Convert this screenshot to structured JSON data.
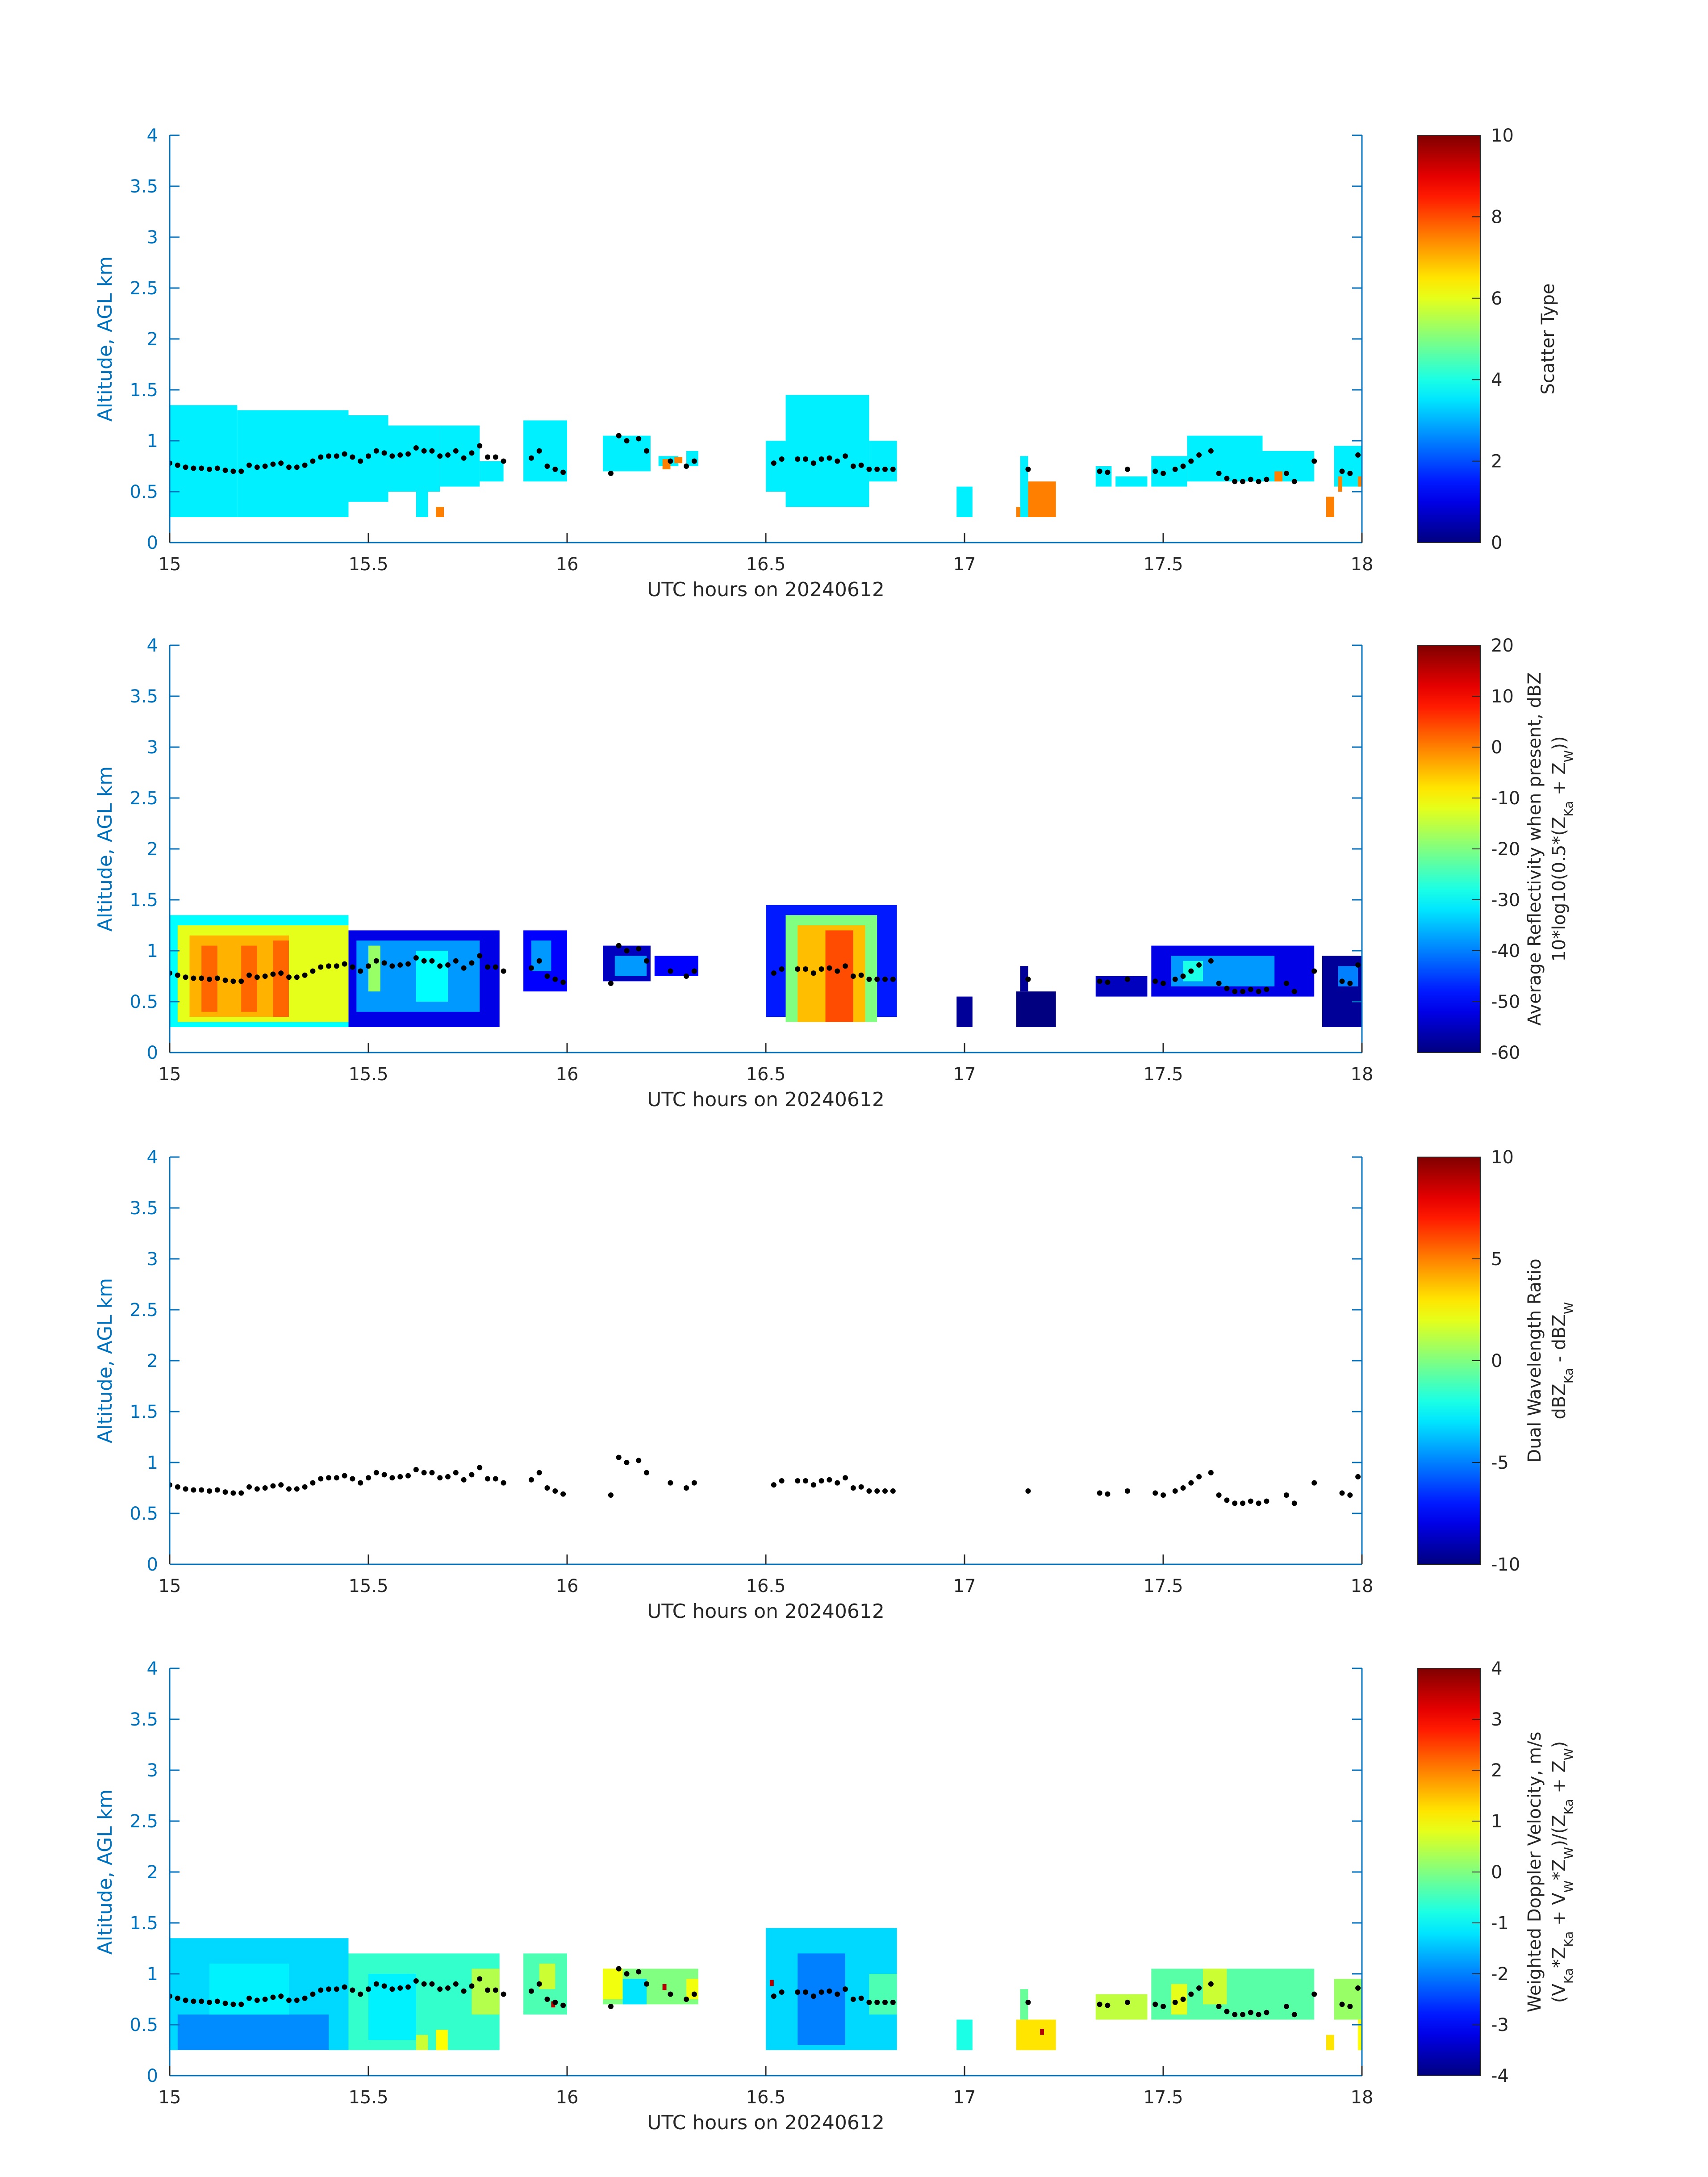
{
  "colors": {
    "axis": "#0072BD",
    "text": "#262626",
    "marker": "#000000",
    "jet": [
      "#00007f",
      "#0000ff",
      "#007fff",
      "#00ffff",
      "#7fff7f",
      "#ffff00",
      "#ff7f00",
      "#ff0000",
      "#7f0000"
    ]
  },
  "chart_data": [
    {
      "type": "heatmap",
      "id": "scatter-type",
      "title": "",
      "xlabel": "UTC hours on 20240612",
      "ylabel": "Altitude, AGL km",
      "xlim": [
        15,
        18
      ],
      "ylim": [
        0,
        4
      ],
      "xticks": [
        "15",
        "15.5",
        "16",
        "16.5",
        "17",
        "17.5",
        "18"
      ],
      "yticks": [
        "0",
        "0.5",
        "1",
        "1.5",
        "2",
        "2.5",
        "3",
        "3.5",
        "4"
      ],
      "colorbar": {
        "label": "Scatter Type",
        "sublabel": "",
        "clim": [
          0,
          10
        ],
        "ticks": [
          "0",
          "2",
          "4",
          "6",
          "8",
          "10"
        ]
      },
      "regions": [
        {
          "x0": 15.0,
          "x1": 15.17,
          "y0": 0.25,
          "y1": 1.35,
          "v": 3.6
        },
        {
          "x0": 15.17,
          "x1": 15.45,
          "y0": 0.25,
          "y1": 1.3,
          "v": 3.6
        },
        {
          "x0": 15.45,
          "x1": 15.55,
          "y0": 0.4,
          "y1": 1.25,
          "v": 3.6
        },
        {
          "x0": 15.55,
          "x1": 15.68,
          "y0": 0.5,
          "y1": 1.15,
          "v": 3.6
        },
        {
          "x0": 15.62,
          "x1": 15.65,
          "y0": 0.25,
          "y1": 0.5,
          "v": 3.6
        },
        {
          "x0": 15.68,
          "x1": 15.78,
          "y0": 0.55,
          "y1": 1.15,
          "v": 3.6
        },
        {
          "x0": 15.78,
          "x1": 15.84,
          "y0": 0.6,
          "y1": 0.8,
          "v": 3.6
        },
        {
          "x0": 15.67,
          "x1": 15.69,
          "y0": 0.25,
          "y1": 0.35,
          "v": 7.5
        },
        {
          "x0": 15.89,
          "x1": 16.0,
          "y0": 0.6,
          "y1": 1.2,
          "v": 3.6
        },
        {
          "x0": 16.09,
          "x1": 16.21,
          "y0": 0.7,
          "y1": 1.05,
          "v": 3.6
        },
        {
          "x0": 16.23,
          "x1": 16.28,
          "y0": 0.75,
          "y1": 0.85,
          "v": 3.6
        },
        {
          "x0": 16.24,
          "x1": 16.26,
          "y0": 0.72,
          "y1": 0.82,
          "v": 7.5
        },
        {
          "x0": 16.27,
          "x1": 16.29,
          "y0": 0.78,
          "y1": 0.84,
          "v": 7.5
        },
        {
          "x0": 16.3,
          "x1": 16.33,
          "y0": 0.75,
          "y1": 0.9,
          "v": 3.6
        },
        {
          "x0": 16.5,
          "x1": 16.55,
          "y0": 0.5,
          "y1": 1.0,
          "v": 3.6
        },
        {
          "x0": 16.55,
          "x1": 16.76,
          "y0": 0.35,
          "y1": 1.45,
          "v": 3.6
        },
        {
          "x0": 16.76,
          "x1": 16.83,
          "y0": 0.6,
          "y1": 1.0,
          "v": 3.6
        },
        {
          "x0": 16.98,
          "x1": 17.02,
          "y0": 0.25,
          "y1": 0.55,
          "v": 3.6
        },
        {
          "x0": 17.14,
          "x1": 17.16,
          "y0": 0.25,
          "y1": 0.85,
          "v": 3.6
        },
        {
          "x0": 17.13,
          "x1": 17.14,
          "y0": 0.25,
          "y1": 0.35,
          "v": 7.5
        },
        {
          "x0": 17.16,
          "x1": 17.23,
          "y0": 0.25,
          "y1": 0.6,
          "v": 7.5
        },
        {
          "x0": 17.33,
          "x1": 17.37,
          "y0": 0.55,
          "y1": 0.75,
          "v": 3.6
        },
        {
          "x0": 17.38,
          "x1": 17.46,
          "y0": 0.55,
          "y1": 0.65,
          "v": 3.6
        },
        {
          "x0": 17.47,
          "x1": 17.56,
          "y0": 0.55,
          "y1": 0.85,
          "v": 3.6
        },
        {
          "x0": 17.56,
          "x1": 17.75,
          "y0": 0.6,
          "y1": 1.05,
          "v": 3.6
        },
        {
          "x0": 17.75,
          "x1": 17.88,
          "y0": 0.6,
          "y1": 0.9,
          "v": 3.6
        },
        {
          "x0": 17.78,
          "x1": 17.8,
          "y0": 0.6,
          "y1": 0.7,
          "v": 7.5
        },
        {
          "x0": 17.91,
          "x1": 17.93,
          "y0": 0.25,
          "y1": 0.45,
          "v": 7.5
        },
        {
          "x0": 17.93,
          "x1": 18.0,
          "y0": 0.55,
          "y1": 0.95,
          "v": 3.6
        },
        {
          "x0": 17.94,
          "x1": 17.95,
          "y0": 0.5,
          "y1": 0.65,
          "v": 7.5
        },
        {
          "x0": 17.99,
          "x1": 18.0,
          "y0": 0.55,
          "y1": 0.65,
          "v": 7.5
        }
      ]
    },
    {
      "type": "heatmap",
      "id": "reflectivity",
      "title": "",
      "xlabel": "UTC hours on 20240612",
      "ylabel": "Altitude, AGL km",
      "xlim": [
        15,
        18
      ],
      "ylim": [
        0,
        4
      ],
      "xticks": [
        "15",
        "15.5",
        "16",
        "16.5",
        "17",
        "17.5",
        "18"
      ],
      "yticks": [
        "0",
        "0.5",
        "1",
        "1.5",
        "2",
        "2.5",
        "3",
        "3.5",
        "4"
      ],
      "colorbar": {
        "label": "Average Reflectivity when present, dBZ",
        "sublabel": "10*log10(0.5*(Z_Ka + Z_W))",
        "clim": [
          -60,
          20
        ],
        "ticks": [
          "-60",
          "-50",
          "-40",
          "-30",
          "-20",
          "-10",
          "0",
          "10",
          "20"
        ]
      },
      "regions": [
        {
          "x0": 15.0,
          "x1": 15.45,
          "y0": 0.25,
          "y1": 1.35,
          "v": -30
        },
        {
          "x0": 15.02,
          "x1": 15.45,
          "y0": 0.3,
          "y1": 1.25,
          "v": -12
        },
        {
          "x0": 15.05,
          "x1": 15.3,
          "y0": 0.35,
          "y1": 1.15,
          "v": -4
        },
        {
          "x0": 15.08,
          "x1": 15.12,
          "y0": 0.4,
          "y1": 1.05,
          "v": 2
        },
        {
          "x0": 15.18,
          "x1": 15.22,
          "y0": 0.4,
          "y1": 1.05,
          "v": 2
        },
        {
          "x0": 15.26,
          "x1": 15.3,
          "y0": 0.35,
          "y1": 1.1,
          "v": 2
        },
        {
          "x0": 15.45,
          "x1": 15.83,
          "y0": 0.25,
          "y1": 1.2,
          "v": -52
        },
        {
          "x0": 15.47,
          "x1": 15.78,
          "y0": 0.4,
          "y1": 1.1,
          "v": -38
        },
        {
          "x0": 15.5,
          "x1": 15.53,
          "y0": 0.6,
          "y1": 1.05,
          "v": -18
        },
        {
          "x0": 15.62,
          "x1": 15.7,
          "y0": 0.5,
          "y1": 1.0,
          "v": -30
        },
        {
          "x0": 15.89,
          "x1": 16.0,
          "y0": 0.6,
          "y1": 1.2,
          "v": -50
        },
        {
          "x0": 15.91,
          "x1": 15.96,
          "y0": 0.8,
          "y1": 1.1,
          "v": -38
        },
        {
          "x0": 16.09,
          "x1": 16.21,
          "y0": 0.7,
          "y1": 1.05,
          "v": -55
        },
        {
          "x0": 16.12,
          "x1": 16.2,
          "y0": 0.75,
          "y1": 0.95,
          "v": -38
        },
        {
          "x0": 16.22,
          "x1": 16.33,
          "y0": 0.75,
          "y1": 0.95,
          "v": -50
        },
        {
          "x0": 16.5,
          "x1": 16.83,
          "y0": 0.35,
          "y1": 1.45,
          "v": -48
        },
        {
          "x0": 16.55,
          "x1": 16.78,
          "y0": 0.3,
          "y1": 1.35,
          "v": -20
        },
        {
          "x0": 16.58,
          "x1": 16.75,
          "y0": 0.3,
          "y1": 1.25,
          "v": -5
        },
        {
          "x0": 16.65,
          "x1": 16.72,
          "y0": 0.3,
          "y1": 1.2,
          "v": 4
        },
        {
          "x0": 16.98,
          "x1": 17.02,
          "y0": 0.25,
          "y1": 0.55,
          "v": -58
        },
        {
          "x0": 17.13,
          "x1": 17.23,
          "y0": 0.25,
          "y1": 0.6,
          "v": -60
        },
        {
          "x0": 17.14,
          "x1": 17.16,
          "y0": 0.6,
          "y1": 0.85,
          "v": -58
        },
        {
          "x0": 17.33,
          "x1": 17.46,
          "y0": 0.55,
          "y1": 0.75,
          "v": -55
        },
        {
          "x0": 17.47,
          "x1": 17.88,
          "y0": 0.55,
          "y1": 1.05,
          "v": -52
        },
        {
          "x0": 17.52,
          "x1": 17.78,
          "y0": 0.65,
          "y1": 0.95,
          "v": -38
        },
        {
          "x0": 17.55,
          "x1": 17.6,
          "y0": 0.7,
          "y1": 0.9,
          "v": -28
        },
        {
          "x0": 17.9,
          "x1": 18.0,
          "y0": 0.25,
          "y1": 0.95,
          "v": -58
        },
        {
          "x0": 17.94,
          "x1": 17.99,
          "y0": 0.65,
          "y1": 0.85,
          "v": -40
        }
      ]
    },
    {
      "type": "heatmap",
      "id": "dual-wavelength-ratio",
      "title": "",
      "xlabel": "UTC hours on 20240612",
      "ylabel": "Altitude, AGL km",
      "xlim": [
        15,
        18
      ],
      "ylim": [
        0,
        4
      ],
      "xticks": [
        "15",
        "15.5",
        "16",
        "16.5",
        "17",
        "17.5",
        "18"
      ],
      "yticks": [
        "0",
        "0.5",
        "1",
        "1.5",
        "2",
        "2.5",
        "3",
        "3.5",
        "4"
      ],
      "colorbar": {
        "label": "Dual Wavelength Ratio",
        "sublabel": "dBZ_Ka - dBZ_W",
        "clim": [
          -10,
          10
        ],
        "ticks": [
          "-10",
          "-5",
          "0",
          "5",
          "10"
        ]
      },
      "regions": []
    },
    {
      "type": "heatmap",
      "id": "doppler-velocity",
      "title": "",
      "xlabel": "UTC hours on 20240612",
      "ylabel": "Altitude, AGL km",
      "xlim": [
        15,
        18
      ],
      "ylim": [
        0,
        4
      ],
      "xticks": [
        "15",
        "15.5",
        "16",
        "16.5",
        "17",
        "17.5",
        "18"
      ],
      "yticks": [
        "0",
        "0.5",
        "1",
        "1.5",
        "2",
        "2.5",
        "3",
        "3.5",
        "4"
      ],
      "colorbar": {
        "label": "Weighted Doppler Velocity, m/s",
        "sublabel": "(V_Ka*Z_Ka + V_W*Z_W)/(Z_Ka + Z_W)",
        "clim": [
          -4,
          4
        ],
        "ticks": [
          "-4",
          "-3",
          "-2",
          "-1",
          "0",
          "1",
          "2",
          "3",
          "4"
        ]
      },
      "regions": [
        {
          "x0": 15.0,
          "x1": 15.45,
          "y0": 0.25,
          "y1": 1.35,
          "v": -1.3
        },
        {
          "x0": 15.02,
          "x1": 15.4,
          "y0": 0.25,
          "y1": 0.6,
          "v": -1.9
        },
        {
          "x0": 15.1,
          "x1": 15.3,
          "y0": 0.6,
          "y1": 1.1,
          "v": -1.1
        },
        {
          "x0": 15.45,
          "x1": 15.83,
          "y0": 0.25,
          "y1": 1.2,
          "v": -0.6
        },
        {
          "x0": 15.5,
          "x1": 15.62,
          "y0": 0.35,
          "y1": 1.0,
          "v": -1.1
        },
        {
          "x0": 15.62,
          "x1": 15.65,
          "y0": 0.25,
          "y1": 0.4,
          "v": 0.6
        },
        {
          "x0": 15.67,
          "x1": 15.7,
          "y0": 0.25,
          "y1": 0.45,
          "v": 1.0
        },
        {
          "x0": 15.76,
          "x1": 15.83,
          "y0": 0.6,
          "y1": 1.05,
          "v": 0.4
        },
        {
          "x0": 15.89,
          "x1": 16.0,
          "y0": 0.6,
          "y1": 1.2,
          "v": -0.4
        },
        {
          "x0": 15.93,
          "x1": 15.97,
          "y0": 0.85,
          "y1": 1.1,
          "v": 0.6
        },
        {
          "x0": 15.96,
          "x1": 15.97,
          "y0": 0.67,
          "y1": 0.73,
          "v": 3.6
        },
        {
          "x0": 16.09,
          "x1": 16.33,
          "y0": 0.7,
          "y1": 1.05,
          "v": 0.0
        },
        {
          "x0": 16.09,
          "x1": 16.14,
          "y0": 0.75,
          "y1": 1.05,
          "v": 0.9
        },
        {
          "x0": 16.14,
          "x1": 16.2,
          "y0": 0.7,
          "y1": 0.95,
          "v": -1.2
        },
        {
          "x0": 16.24,
          "x1": 16.25,
          "y0": 0.84,
          "y1": 0.9,
          "v": 3.6
        },
        {
          "x0": 16.3,
          "x1": 16.33,
          "y0": 0.75,
          "y1": 0.95,
          "v": 0.9
        },
        {
          "x0": 16.5,
          "x1": 16.83,
          "y0": 0.25,
          "y1": 1.45,
          "v": -1.3
        },
        {
          "x0": 16.58,
          "x1": 16.7,
          "y0": 0.3,
          "y1": 1.2,
          "v": -2.0
        },
        {
          "x0": 16.76,
          "x1": 16.83,
          "y0": 0.6,
          "y1": 1.0,
          "v": -0.4
        },
        {
          "x0": 16.51,
          "x1": 16.52,
          "y0": 0.88,
          "y1": 0.94,
          "v": 3.6
        },
        {
          "x0": 16.98,
          "x1": 17.02,
          "y0": 0.25,
          "y1": 0.55,
          "v": -0.8
        },
        {
          "x0": 17.13,
          "x1": 17.23,
          "y0": 0.25,
          "y1": 0.55,
          "v": 1.2
        },
        {
          "x0": 17.14,
          "x1": 17.16,
          "y0": 0.55,
          "y1": 0.85,
          "v": -0.2
        },
        {
          "x0": 17.19,
          "x1": 17.2,
          "y0": 0.4,
          "y1": 0.46,
          "v": 3.6
        },
        {
          "x0": 17.33,
          "x1": 17.46,
          "y0": 0.55,
          "y1": 0.8,
          "v": 0.5
        },
        {
          "x0": 17.47,
          "x1": 17.88,
          "y0": 0.55,
          "y1": 1.05,
          "v": -0.3
        },
        {
          "x0": 17.52,
          "x1": 17.56,
          "y0": 0.6,
          "y1": 0.9,
          "v": 0.8
        },
        {
          "x0": 17.6,
          "x1": 17.66,
          "y0": 0.7,
          "y1": 1.05,
          "v": 0.6
        },
        {
          "x0": 17.91,
          "x1": 17.93,
          "y0": 0.25,
          "y1": 0.4,
          "v": 1.2
        },
        {
          "x0": 17.93,
          "x1": 18.0,
          "y0": 0.55,
          "y1": 0.95,
          "v": 0.2
        },
        {
          "x0": 17.99,
          "x1": 18.0,
          "y0": 0.25,
          "y1": 0.55,
          "v": 1.0
        }
      ]
    }
  ],
  "cloud_base_points": {
    "x": [
      15.0,
      15.02,
      15.04,
      15.06,
      15.08,
      15.1,
      15.12,
      15.14,
      15.16,
      15.18,
      15.2,
      15.22,
      15.24,
      15.26,
      15.28,
      15.3,
      15.32,
      15.34,
      15.36,
      15.38,
      15.4,
      15.42,
      15.44,
      15.46,
      15.48,
      15.5,
      15.52,
      15.54,
      15.56,
      15.58,
      15.6,
      15.62,
      15.64,
      15.66,
      15.68,
      15.7,
      15.72,
      15.74,
      15.76,
      15.78,
      15.8,
      15.82,
      15.84,
      15.91,
      15.93,
      15.95,
      15.97,
      15.99,
      16.11,
      16.13,
      16.15,
      16.18,
      16.2,
      16.26,
      16.3,
      16.32,
      16.52,
      16.54,
      16.58,
      16.6,
      16.62,
      16.64,
      16.66,
      16.68,
      16.7,
      16.72,
      16.74,
      16.76,
      16.78,
      16.8,
      16.82,
      17.16,
      17.34,
      17.36,
      17.41,
      17.48,
      17.5,
      17.53,
      17.55,
      17.57,
      17.59,
      17.62,
      17.64,
      17.66,
      17.68,
      17.7,
      17.72,
      17.74,
      17.76,
      17.81,
      17.83,
      17.88,
      17.95,
      17.97,
      17.99
    ],
    "y": [
      0.78,
      0.76,
      0.74,
      0.73,
      0.73,
      0.72,
      0.73,
      0.71,
      0.7,
      0.7,
      0.76,
      0.74,
      0.75,
      0.77,
      0.78,
      0.74,
      0.74,
      0.76,
      0.8,
      0.84,
      0.85,
      0.85,
      0.87,
      0.84,
      0.8,
      0.85,
      0.9,
      0.88,
      0.85,
      0.86,
      0.87,
      0.93,
      0.9,
      0.9,
      0.85,
      0.86,
      0.9,
      0.83,
      0.88,
      0.95,
      0.84,
      0.84,
      0.8,
      0.83,
      0.9,
      0.75,
      0.72,
      0.69,
      0.68,
      1.05,
      1.0,
      1.02,
      0.9,
      0.8,
      0.75,
      0.8,
      0.78,
      0.82,
      0.82,
      0.82,
      0.78,
      0.82,
      0.83,
      0.8,
      0.85,
      0.75,
      0.76,
      0.72,
      0.72,
      0.72,
      0.72,
      0.72,
      0.7,
      0.69,
      0.72,
      0.7,
      0.68,
      0.72,
      0.75,
      0.8,
      0.86,
      0.9,
      0.68,
      0.63,
      0.6,
      0.6,
      0.62,
      0.6,
      0.62,
      0.68,
      0.6,
      0.8,
      0.7,
      0.68,
      0.86
    ]
  }
}
